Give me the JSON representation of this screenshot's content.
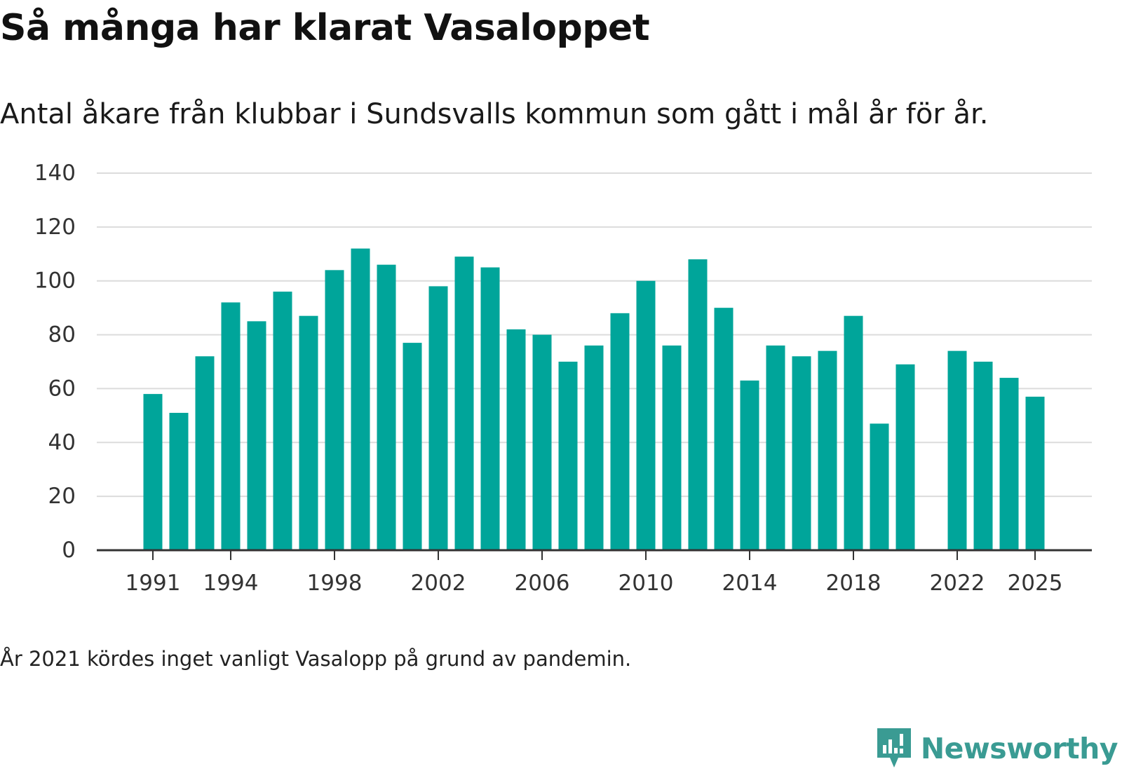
{
  "title": "Så många har klarat Vasaloppet",
  "subtitle": "Antal åkare från klubbar i Sundsvalls kommun som gått i mål år för år.",
  "note": "År 2021 kördes inget vanligt Vasalopp på grund av pandemin.",
  "brand": {
    "name": "Newsworthy",
    "icon": "newsworthy-logo-icon",
    "color": "#3a9b93"
  },
  "colors": {
    "bar": "#00a59a",
    "grid": "#dcdcdc",
    "axis": "#333333"
  },
  "chart_data": {
    "type": "bar",
    "title": "Så många har klarat Vasaloppet",
    "subtitle": "Antal åkare från klubbar i Sundsvalls kommun som gått i mål år för år.",
    "xlabel": "",
    "ylabel": "",
    "ylim": [
      0,
      140
    ],
    "yticks": [
      0,
      20,
      40,
      60,
      80,
      100,
      120,
      140
    ],
    "grid": true,
    "categories": [
      1991,
      1992,
      1993,
      1994,
      1995,
      1996,
      1997,
      1998,
      1999,
      2000,
      2001,
      2002,
      2003,
      2004,
      2005,
      2006,
      2007,
      2008,
      2009,
      2010,
      2011,
      2012,
      2013,
      2014,
      2015,
      2016,
      2017,
      2018,
      2019,
      2020,
      2021,
      2022,
      2023,
      2024,
      2025
    ],
    "values": [
      58,
      51,
      72,
      92,
      85,
      96,
      87,
      104,
      112,
      106,
      77,
      98,
      109,
      105,
      82,
      80,
      70,
      76,
      88,
      100,
      76,
      108,
      90,
      63,
      76,
      72,
      74,
      87,
      47,
      69,
      null,
      74,
      70,
      64,
      57
    ],
    "xtick_labels": [
      "1991",
      "1994",
      "1998",
      "2002",
      "2006",
      "2010",
      "2014",
      "2018",
      "2022",
      "2025"
    ]
  }
}
